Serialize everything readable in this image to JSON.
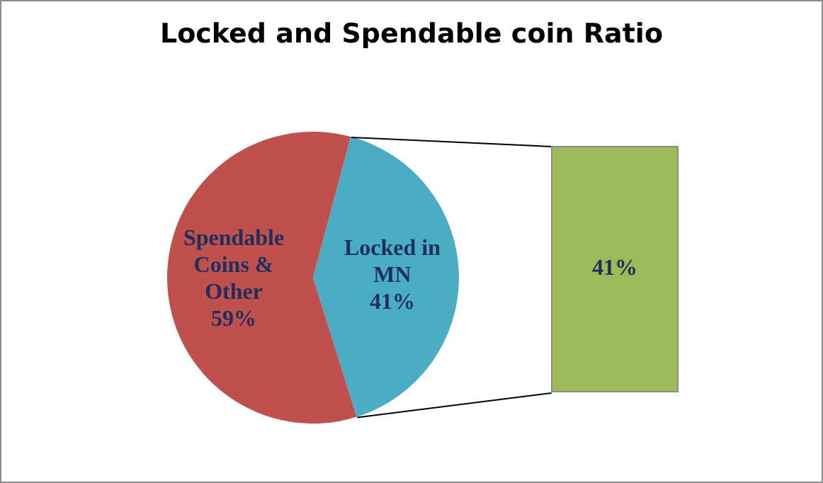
{
  "chart_data": {
    "type": "pie",
    "title": "Locked and Spendable coin Ratio",
    "categories": [
      "Locked in MN",
      "Spendable Coins & Other"
    ],
    "values": [
      41,
      59
    ],
    "colors": [
      "#4bacc6",
      "#c0504d"
    ],
    "value_labels": [
      "41%",
      "59%"
    ],
    "annotations": [
      "41%"
    ]
  }
}
